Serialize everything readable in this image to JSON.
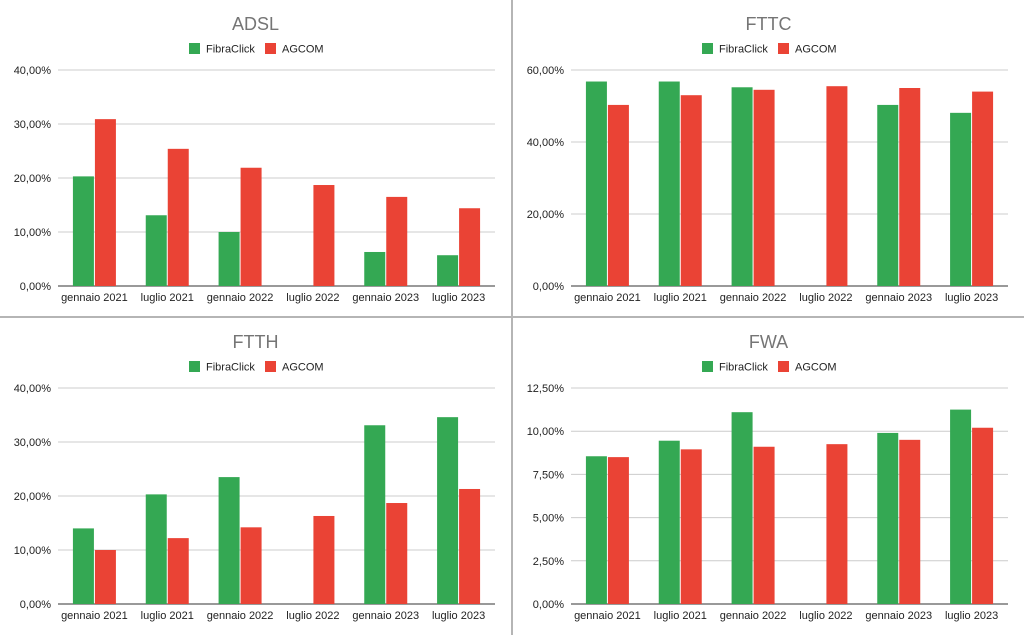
{
  "chart_data": [
    {
      "type": "bar",
      "title": "ADSL",
      "categories": [
        "gennaio 2021",
        "luglio 2021",
        "gennaio 2022",
        "luglio 2022",
        "gennaio 2023",
        "luglio 2023"
      ],
      "series": [
        {
          "name": "FibraClick",
          "color": "#34a853",
          "values": [
            20.3,
            13.1,
            10.0,
            null,
            6.3,
            5.7
          ]
        },
        {
          "name": "AGCOM",
          "color": "#ea4335",
          "values": [
            30.9,
            25.4,
            21.9,
            18.7,
            16.5,
            14.4
          ]
        }
      ],
      "ylim": [
        0,
        40
      ],
      "yticks": [
        "0,00%",
        "10,00%",
        "20,00%",
        "30,00%",
        "40,00%"
      ],
      "legend": "top-center",
      "grid": true
    },
    {
      "type": "bar",
      "title": "FTTC",
      "categories": [
        "gennaio 2021",
        "luglio 2021",
        "gennaio 2022",
        "luglio 2022",
        "gennaio 2023",
        "luglio 2023"
      ],
      "series": [
        {
          "name": "FibraClick",
          "color": "#34a853",
          "values": [
            56.8,
            56.8,
            55.2,
            null,
            50.3,
            48.1
          ]
        },
        {
          "name": "AGCOM",
          "color": "#ea4335",
          "values": [
            50.3,
            53.0,
            54.5,
            55.5,
            55.0,
            54.0
          ]
        }
      ],
      "ylim": [
        0,
        60
      ],
      "yticks": [
        "0,00%",
        "20,00%",
        "40,00%",
        "60,00%"
      ],
      "legend": "top-center",
      "grid": true
    },
    {
      "type": "bar",
      "title": "FTTH",
      "categories": [
        "gennaio 2021",
        "luglio 2021",
        "gennaio 2022",
        "luglio 2022",
        "gennaio 2023",
        "luglio 2023"
      ],
      "series": [
        {
          "name": "FibraClick",
          "color": "#34a853",
          "values": [
            14.0,
            20.3,
            23.5,
            null,
            33.1,
            34.6
          ]
        },
        {
          "name": "AGCOM",
          "color": "#ea4335",
          "values": [
            10.0,
            12.2,
            14.2,
            16.3,
            18.7,
            21.3
          ]
        }
      ],
      "ylim": [
        0,
        40
      ],
      "yticks": [
        "0,00%",
        "10,00%",
        "20,00%",
        "30,00%",
        "40,00%"
      ],
      "legend": "top-center",
      "grid": true
    },
    {
      "type": "bar",
      "title": "FWA",
      "categories": [
        "gennaio 2021",
        "luglio 2021",
        "gennaio 2022",
        "luglio 2022",
        "gennaio 2023",
        "luglio 2023"
      ],
      "series": [
        {
          "name": "FibraClick",
          "color": "#34a853",
          "values": [
            8.55,
            9.45,
            11.1,
            null,
            9.9,
            11.25
          ]
        },
        {
          "name": "AGCOM",
          "color": "#ea4335",
          "values": [
            8.5,
            8.95,
            9.1,
            9.25,
            9.5,
            10.2
          ]
        }
      ],
      "ylim": [
        0,
        12.5
      ],
      "yticks": [
        "0,00%",
        "2,50%",
        "5,00%",
        "7,50%",
        "10,00%",
        "12,50%"
      ],
      "legend": "top-center",
      "grid": true
    }
  ]
}
